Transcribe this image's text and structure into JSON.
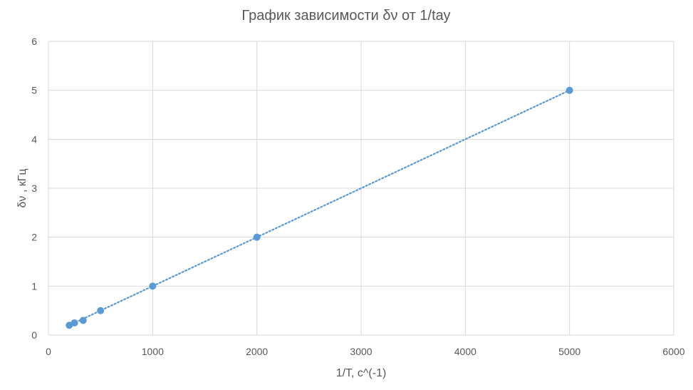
{
  "chart_data": {
    "type": "scatter",
    "title": "График зависимости δν от 1/tау",
    "xlabel": "1/T, c^(-1)",
    "ylabel": "δν , кГц",
    "xlim": [
      0,
      6000
    ],
    "ylim": [
      0,
      6
    ],
    "x_ticks": [
      "0",
      "1000",
      "2000",
      "3000",
      "4000",
      "5000",
      "6000"
    ],
    "y_ticks": [
      "0",
      "1",
      "2",
      "3",
      "4",
      "5",
      "6"
    ],
    "grid": true,
    "legend": "none",
    "series": [
      {
        "marker_color": "#5B9BD5",
        "points": [
          {
            "x": 200,
            "y": 0.2
          },
          {
            "x": 250,
            "y": 0.25
          },
          {
            "x": 333,
            "y": 0.3
          },
          {
            "x": 500,
            "y": 0.5
          },
          {
            "x": 1000,
            "y": 1.0
          },
          {
            "x": 2000,
            "y": 2.0
          },
          {
            "x": 5000,
            "y": 5.0
          }
        ],
        "trendline": {
          "style": "dotted",
          "type": "linear",
          "color": "#5B9BD5",
          "from": {
            "x": 200,
            "y": 0.2
          },
          "to": {
            "x": 5000,
            "y": 5.0
          }
        }
      }
    ]
  },
  "colors": {
    "grid": "#D9D9D9",
    "axis_text": "#595959",
    "marker": "#5B9BD5"
  }
}
